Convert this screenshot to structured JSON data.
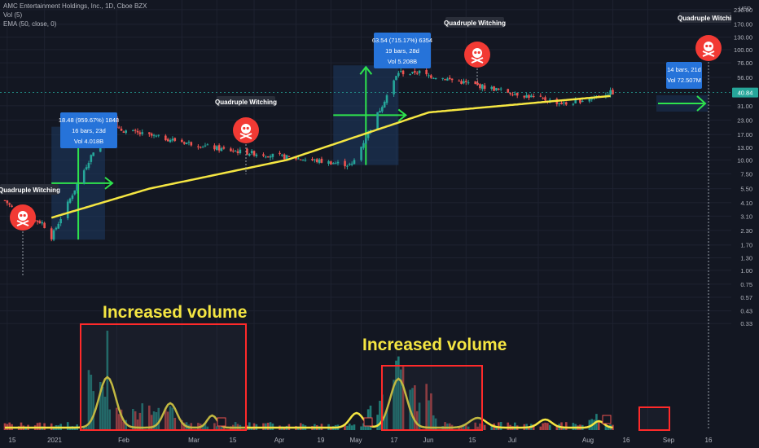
{
  "header": {
    "symbol_line": "AMC Entertainment Holdings, Inc., 1D, Cboe BZX",
    "vol_line": "Vol (5)",
    "ema_line": "EMA (50, close, 0)"
  },
  "price_axis": {
    "currency": "USD",
    "ticks": [
      "230.00",
      "170.00",
      "130.00",
      "100.00",
      "76.00",
      "56.00",
      "40.84",
      "31.00",
      "23.00",
      "17.00",
      "13.00",
      "10.00",
      "7.50",
      "5.50",
      "4.10",
      "3.10",
      "2.30",
      "1.70",
      "1.30",
      "1.00",
      "0.75",
      "0.57",
      "0.43",
      "0.33"
    ],
    "last_price": "40.84"
  },
  "time_axis": {
    "ticks": [
      "15",
      "2021",
      "Feb",
      "Mar",
      "15",
      "Apr",
      "19",
      "May",
      "17",
      "Jun",
      "15",
      "Jul",
      "Aug",
      "16",
      "Sep",
      "16"
    ]
  },
  "annotations": {
    "qw_labels": [
      "Quadruple Witching",
      "Quadruple Witching",
      "Quadruple Witching",
      "Quadruple Witching"
    ],
    "box1": {
      "line1": "18.48 (959.67%) 1848",
      "line2": "16 bars, 23d",
      "line3": "Vol 4.018B"
    },
    "box2": {
      "line1": "63.54 (715.17%) 6354",
      "line2": "19 bars, 28d",
      "line3": "Vol 5.208B"
    },
    "box3": {
      "line1": "14 bars, 21d",
      "line2": "Vol 72.507M"
    },
    "vol_label_1": "Increased volume",
    "vol_label_2": "Increased volume"
  },
  "colors": {
    "background": "#131722",
    "up": "#26a69a",
    "down": "#ef5350",
    "ema": "#f5e642",
    "arrow": "#2ee34d",
    "highlight_box": "#ff2a2a",
    "measure_label": "#2673d9",
    "volume_label": "#f5e642"
  },
  "chart_data": {
    "type": "candlestick",
    "ticker": "AMC Entertainment Holdings, Inc.",
    "interval": "1D",
    "scale": "log",
    "ylim": [
      0.3,
      230
    ],
    "indicators": [
      "Vol (5)",
      "EMA (50, close, 0)"
    ],
    "key_points": [
      {
        "date": "2021-01-04",
        "close": 2.0
      },
      {
        "date": "2021-01-27",
        "close": 19.9
      },
      {
        "date": "2021-03-19",
        "close": 12.4
      },
      {
        "date": "2021-05-13",
        "close": 9.0
      },
      {
        "date": "2021-06-02",
        "close": 62.6
      },
      {
        "date": "2021-06-18",
        "close": 57.0
      },
      {
        "date": "2021-08-13",
        "close": 32.0
      },
      {
        "date": "2021-09-01",
        "close": 40.84
      }
    ],
    "ema50_key_points": [
      {
        "date": "2021-01-04",
        "close": 3.0
      },
      {
        "date": "2021-02-15",
        "close": 5.5
      },
      {
        "date": "2021-04-15",
        "close": 10.0
      },
      {
        "date": "2021-06-15",
        "close": 27.0
      },
      {
        "date": "2021-09-01",
        "close": 38.0
      }
    ],
    "measurements": [
      {
        "change": 18.48,
        "percent": 959.67,
        "bars": 16,
        "days": 23,
        "volume": "4.018B"
      },
      {
        "change": 63.54,
        "percent": 715.17,
        "bars": 19,
        "days": 28,
        "volume": "5.208B"
      },
      {
        "bars": 14,
        "days": 21,
        "volume": "72.507M"
      }
    ]
  }
}
